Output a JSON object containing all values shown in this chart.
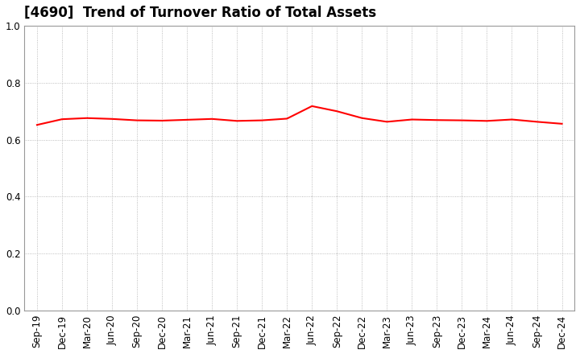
{
  "title": "[4690]  Trend of Turnover Ratio of Total Assets",
  "xlabels": [
    "Sep-19",
    "Dec-19",
    "Mar-20",
    "Jun-20",
    "Sep-20",
    "Dec-20",
    "Mar-21",
    "Jun-21",
    "Sep-21",
    "Dec-21",
    "Mar-22",
    "Jun-22",
    "Sep-22",
    "Dec-22",
    "Mar-23",
    "Jun-23",
    "Sep-23",
    "Dec-23",
    "Mar-24",
    "Jun-24",
    "Sep-24",
    "Dec-24"
  ],
  "values": [
    0.652,
    0.672,
    0.676,
    0.673,
    0.668,
    0.667,
    0.67,
    0.673,
    0.666,
    0.668,
    0.674,
    0.718,
    0.7,
    0.676,
    0.663,
    0.671,
    0.669,
    0.668,
    0.666,
    0.671,
    0.663,
    0.656
  ],
  "ylim": [
    0.0,
    1.0
  ],
  "yticks": [
    0.0,
    0.2,
    0.4,
    0.6,
    0.8,
    1.0
  ],
  "line_color": "#ff0000",
  "line_width": 1.5,
  "grid_color": "#aaaaaa",
  "bg_color": "#ffffff",
  "title_fontsize": 12,
  "tick_fontsize": 8.5
}
